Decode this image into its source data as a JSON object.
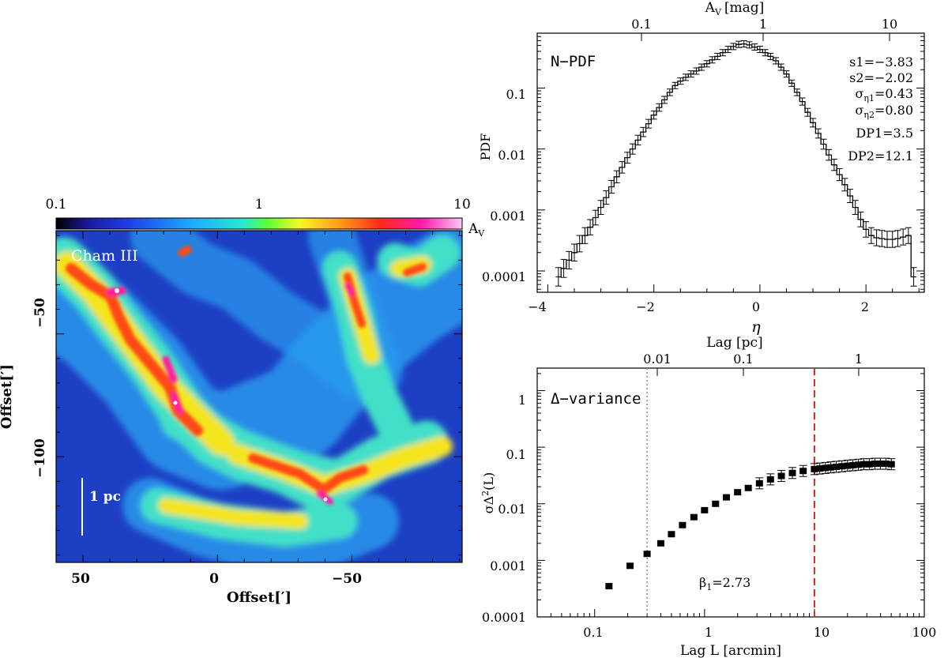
{
  "chart_data": [
    {
      "type": "heatmap",
      "label": "Cham III",
      "xlabel": "Offset[′]",
      "ylabel": "Offset[′]",
      "x_ticks": [
        "50",
        "0",
        "−50"
      ],
      "y_ticks": [
        "−50",
        "−100"
      ],
      "xlim": [
        60,
        -91
      ],
      "ylim": [
        -143,
        -8
      ],
      "colorbar": {
        "label": "A",
        "label_sub": "V",
        "ticks": [
          "0.1",
          "1",
          "10"
        ],
        "scale": "log",
        "range": [
          0.1,
          10
        ]
      },
      "scalebar": "1 pc",
      "colors": {
        "background": "#1d3fc4",
        "cloud": [
          "#2a9cf0",
          "#43e0c8",
          "#f5e51b",
          "#ff4a16",
          "#ff1aa0",
          "#ffffff"
        ]
      }
    },
    {
      "type": "line",
      "label": "N−PDF",
      "xlabel": "η",
      "ylabel": "PDF",
      "top_label": "A",
      "top_label_sub": "V",
      "top_label_unit": "[mag]",
      "top_ticks": [
        "0.1",
        "1",
        "10"
      ],
      "x_ticks": [
        "−4",
        "−2",
        "0",
        "2"
      ],
      "y_ticks": [
        "0.0001",
        "0.001",
        "0.01",
        "0.1"
      ],
      "xlim": [
        -4.2,
        3.1
      ],
      "ylim_log10": [
        -4.35,
        -0.1
      ],
      "y_scale": "log",
      "annotations": [
        "s1=−3.83",
        "s2=−2.02",
        "σ|η1|=0.43",
        "σ|η2|=0.80",
        "DP1=3.5",
        "DP2=12.1"
      ],
      "series": [
        {
          "x": [
            -3.8,
            -3.7,
            -3.6,
            -3.5,
            -3.4,
            -3.3,
            -3.2,
            -3.1,
            -3.0,
            -2.9,
            -2.8,
            -2.7,
            -2.6,
            -2.5,
            -2.4,
            -2.3,
            -2.2,
            -2.1,
            -2.0,
            -1.9,
            -1.8,
            -1.7,
            -1.6,
            -1.5,
            -1.4,
            -1.3,
            -1.2,
            -1.1,
            -1.0,
            -0.9,
            -0.8,
            -0.7,
            -0.6,
            -0.5,
            -0.4,
            -0.3,
            -0.2,
            -0.1,
            0.0,
            0.1,
            0.2,
            0.3,
            0.4,
            0.5,
            0.6,
            0.7,
            0.8,
            0.9,
            1.0,
            1.1,
            1.2,
            1.3,
            1.4,
            1.5,
            1.6,
            1.7,
            1.8,
            1.9,
            2.0,
            2.1,
            2.2,
            2.3,
            2.4,
            2.5,
            2.6,
            2.7,
            2.8,
            2.9
          ],
          "y": [
            8e-05,
            0.00011,
            0.00015,
            0.0002,
            0.00028,
            0.00038,
            0.00052,
            0.00075,
            0.0011,
            0.0016,
            0.0024,
            0.0035,
            0.005,
            0.0072,
            0.01,
            0.014,
            0.019,
            0.026,
            0.036,
            0.048,
            0.064,
            0.085,
            0.11,
            0.13,
            0.15,
            0.17,
            0.19,
            0.22,
            0.25,
            0.29,
            0.33,
            0.38,
            0.43,
            0.48,
            0.52,
            0.53,
            0.51,
            0.47,
            0.43,
            0.38,
            0.33,
            0.28,
            0.22,
            0.17,
            0.12,
            0.085,
            0.06,
            0.04,
            0.027,
            0.018,
            0.012,
            0.008,
            0.0055,
            0.0038,
            0.0026,
            0.0017,
            0.0011,
            0.0007,
            0.00048,
            0.00038,
            0.00035,
            0.00034,
            0.00033,
            0.00033,
            0.00034,
            0.00036,
            0.00038,
            8e-05
          ]
        }
      ]
    },
    {
      "type": "scatter",
      "label": "Δ−variance",
      "xlabel": "Lag L [arcmin]",
      "ylabel": "σΔ²(L)",
      "top_label": "Lag [pc]",
      "top_ticks": [
        "0.01",
        "0.1",
        "1"
      ],
      "x_ticks": [
        "0.1",
        "1",
        "10",
        "100"
      ],
      "y_ticks": [
        "0.0001",
        "0.001",
        "0.01",
        "0.1",
        "1"
      ],
      "xlim": [
        0.03,
        100
      ],
      "ylim": [
        0.0001,
        2.5
      ],
      "x_scale": "log",
      "y_scale": "log",
      "annotation": "β|1|=2.73",
      "vlines": [
        {
          "x": 0.3,
          "style": "dotted",
          "color": "#888888"
        },
        {
          "x": 10,
          "style": "dashed",
          "color": "#d62728"
        }
      ],
      "series": [
        {
          "x": [
            0.135,
            0.21,
            0.3,
            0.4,
            0.5,
            0.63,
            0.8,
            1.0,
            1.26,
            1.58,
            2.0,
            2.5,
            3.16,
            3.98,
            5.0,
            6.3,
            7.9,
            10.0,
            11.2,
            12.6,
            14.1,
            15.8,
            17.8,
            20.0,
            22.4,
            25.1,
            28.2,
            31.6,
            35.5,
            39.8,
            44.7,
            50.1
          ],
          "y": [
            0.00035,
            0.0008,
            0.0013,
            0.002,
            0.0029,
            0.0042,
            0.0058,
            0.0077,
            0.01,
            0.013,
            0.016,
            0.019,
            0.023,
            0.027,
            0.031,
            0.035,
            0.038,
            0.041,
            0.042,
            0.043,
            0.044,
            0.045,
            0.046,
            0.047,
            0.048,
            0.049,
            0.05,
            0.05,
            0.051,
            0.051,
            0.051,
            0.05
          ]
        }
      ]
    }
  ]
}
